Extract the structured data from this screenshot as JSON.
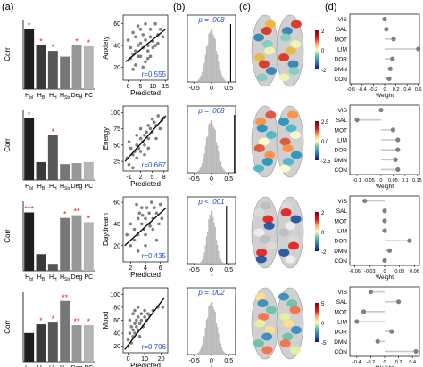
{
  "panel_labels": [
    "(a)",
    "(b)",
    "(c)",
    "(d)"
  ],
  "colors": {
    "star": "#d62728",
    "r_text": "#1f4fd8",
    "hist": "#b8b8b8",
    "weight_dot": "#808080",
    "weight_line": "#c8c8c8"
  },
  "chart_data": [
    {
      "type": "bar",
      "panel": "a",
      "row": 1,
      "ylabel": "Corr",
      "categories": [
        "H_{bl}",
        "H_{B}",
        "H_{H}",
        "H_{Str}",
        "Deg",
        "PC"
      ],
      "values": [
        0.52,
        0.38,
        0.33,
        0.28,
        0.38,
        0.37
      ],
      "significance": [
        "*",
        "*",
        "*",
        "",
        "*",
        "*"
      ],
      "colors": [
        "#1e1e1e",
        "#3a3a3a",
        "#575757",
        "#777777",
        "#979797",
        "#b5b5b5"
      ],
      "ylim": [
        0,
        0.6
      ]
    },
    {
      "type": "scatter",
      "panel": "a",
      "row": 1,
      "xlabel": "Predicted",
      "ylabel": "Anxiety",
      "xticks": [
        0,
        5,
        10,
        15
      ],
      "yticks": [
        20,
        40,
        60
      ],
      "xlim": [
        -2,
        16
      ],
      "ylim": [
        8,
        68
      ],
      "r_label": "r=0.555",
      "fit": [
        [
          -1,
          25
        ],
        [
          15,
          55
        ]
      ],
      "points": [
        [
          0,
          45
        ],
        [
          1,
          28
        ],
        [
          2,
          32
        ],
        [
          3,
          35
        ],
        [
          3,
          48
        ],
        [
          4,
          40
        ],
        [
          5,
          42
        ],
        [
          5,
          30
        ],
        [
          6,
          38
        ],
        [
          6,
          50
        ],
        [
          7,
          45
        ],
        [
          7,
          25
        ],
        [
          8,
          35
        ],
        [
          8,
          40
        ],
        [
          9,
          55
        ],
        [
          9,
          48
        ],
        [
          10,
          38
        ],
        [
          10,
          44
        ],
        [
          11,
          60
        ],
        [
          12,
          50
        ],
        [
          12,
          42
        ],
        [
          13,
          55
        ],
        [
          2,
          52
        ],
        [
          4,
          58
        ],
        [
          7,
          60
        ],
        [
          1,
          38
        ],
        [
          3,
          22
        ],
        [
          6,
          20
        ],
        [
          9,
          30
        ],
        [
          11,
          40
        ],
        [
          14,
          48
        ],
        [
          5,
          55
        ],
        [
          8,
          28
        ],
        [
          2,
          18
        ],
        [
          4,
          30
        ]
      ]
    },
    {
      "type": "histogram",
      "panel": "b",
      "row": 1,
      "p_label": "p = .008",
      "xlabel": "r",
      "xticks": [
        -0.5,
        0.0,
        0.5
      ],
      "xlim": [
        -0.7,
        0.7
      ],
      "observed_r": 0.555,
      "center": 0.0,
      "sd": 0.15
    },
    {
      "type": "colorbar",
      "panel": "c",
      "row": 1,
      "ticks": [
        "2",
        "0",
        "-2"
      ]
    },
    {
      "type": "dot",
      "panel": "d",
      "row": 1,
      "categories": [
        "VIS",
        "SAL",
        "MOT",
        "LIM",
        "DOR",
        "DMN",
        "CON"
      ],
      "values": [
        0.0,
        0.03,
        0.16,
        0.6,
        0.14,
        0.1,
        0.08
      ],
      "xticks": [
        -0.6,
        -0.4,
        -0.2,
        0.0,
        0.2,
        0.4,
        0.6
      ],
      "xlim": [
        -0.62,
        0.62
      ],
      "xlabel": "Weight"
    },
    {
      "type": "bar",
      "panel": "a",
      "row": 2,
      "ylabel": "Corr",
      "categories": [
        "H_{bl}",
        "H_{B}",
        "H_{H}",
        "H_{Str}",
        "Deg",
        "PC"
      ],
      "values": [
        0.62,
        0.18,
        0.45,
        0.16,
        0.17,
        0.18
      ],
      "significance": [
        "*",
        "",
        "*",
        "",
        "",
        ""
      ],
      "colors": [
        "#1e1e1e",
        "#3a3a3a",
        "#575757",
        "#777777",
        "#979797",
        "#b5b5b5"
      ],
      "ylim": [
        0,
        0.7
      ]
    },
    {
      "type": "scatter",
      "panel": "a",
      "row": 2,
      "xlabel": "Predicted",
      "ylabel": "Energy",
      "xticks": [
        -1,
        2,
        5,
        8
      ],
      "yticks": [
        25,
        50,
        75,
        100
      ],
      "xlim": [
        -2.5,
        9
      ],
      "ylim": [
        10,
        110
      ],
      "r_label": "r=0.667",
      "fit": [
        [
          -2,
          25
        ],
        [
          8.5,
          95
        ]
      ],
      "points": [
        [
          -1.5,
          30
        ],
        [
          -1,
          20
        ],
        [
          -0.5,
          45
        ],
        [
          0,
          35
        ],
        [
          0.5,
          40
        ],
        [
          1,
          30
        ],
        [
          1,
          50
        ],
        [
          1.5,
          45
        ],
        [
          2,
          60
        ],
        [
          2,
          40
        ],
        [
          2.5,
          55
        ],
        [
          3,
          50
        ],
        [
          3,
          65
        ],
        [
          3.5,
          70
        ],
        [
          4,
          60
        ],
        [
          4,
          80
        ],
        [
          4.5,
          75
        ],
        [
          5,
          70
        ],
        [
          5,
          90
        ],
        [
          5.5,
          85
        ],
        [
          6,
          80
        ],
        [
          6.5,
          95
        ],
        [
          7,
          75
        ],
        [
          7.5,
          88
        ],
        [
          8,
          92
        ],
        [
          0,
          15
        ],
        [
          -1,
          55
        ],
        [
          2,
          75
        ],
        [
          4,
          45
        ],
        [
          6,
          60
        ],
        [
          3,
          35
        ],
        [
          1,
          65
        ]
      ]
    },
    {
      "type": "histogram",
      "panel": "b",
      "row": 2,
      "p_label": "p = .008",
      "xlabel": "r",
      "xticks": [
        -0.5,
        0.0,
        0.5
      ],
      "xlim": [
        -0.7,
        0.7
      ],
      "observed_r": 0.667,
      "center": 0.0,
      "sd": 0.15
    },
    {
      "type": "colorbar",
      "panel": "c",
      "row": 2,
      "ticks": [
        "2.5",
        "0.0",
        "-2.5"
      ]
    },
    {
      "type": "dot",
      "panel": "d",
      "row": 2,
      "categories": [
        "VIS",
        "SAL",
        "MOT",
        "LIM",
        "DOR",
        "DMN",
        "CON"
      ],
      "values": [
        0.0,
        -0.1,
        0.05,
        0.07,
        0.07,
        0.06,
        0.07
      ],
      "xticks": [
        -0.1,
        -0.05,
        0.0,
        0.05,
        0.1,
        0.15
      ],
      "xlim": [
        -0.13,
        0.16
      ],
      "xlabel": "Weight"
    },
    {
      "type": "bar",
      "panel": "a",
      "row": 3,
      "ylabel": "Corr",
      "categories": [
        "H_{bl}",
        "H_{B}",
        "H_{H}",
        "H_{Str}",
        "Deg",
        "PC"
      ],
      "values": [
        0.42,
        0.12,
        0.05,
        0.38,
        0.4,
        0.35
      ],
      "significance": [
        "***",
        "",
        "",
        "*",
        "**",
        "*"
      ],
      "colors": [
        "#1e1e1e",
        "#3a3a3a",
        "#575757",
        "#777777",
        "#979797",
        "#b5b5b5"
      ],
      "ylim": [
        0,
        0.5
      ]
    },
    {
      "type": "scatter",
      "panel": "a",
      "row": 3,
      "xlabel": "Predicted",
      "ylabel": "Daydream",
      "xticks": [
        2,
        4,
        6
      ],
      "yticks": [
        20,
        40,
        60
      ],
      "xlim": [
        1,
        7
      ],
      "ylim": [
        5,
        65
      ],
      "r_label": "r=0.435",
      "fit": [
        [
          1.2,
          20
        ],
        [
          6.8,
          55
        ]
      ],
      "points": [
        [
          1.5,
          30
        ],
        [
          2,
          20
        ],
        [
          2,
          40
        ],
        [
          2.5,
          35
        ],
        [
          2.5,
          25
        ],
        [
          3,
          45
        ],
        [
          3,
          30
        ],
        [
          3.2,
          50
        ],
        [
          3.5,
          40
        ],
        [
          3.5,
          55
        ],
        [
          3.8,
          35
        ],
        [
          4,
          45
        ],
        [
          4,
          30
        ],
        [
          4.2,
          55
        ],
        [
          4.5,
          40
        ],
        [
          4.5,
          50
        ],
        [
          4.8,
          60
        ],
        [
          5,
          45
        ],
        [
          5,
          35
        ],
        [
          5.2,
          55
        ],
        [
          5.5,
          50
        ],
        [
          5.8,
          40
        ],
        [
          6,
          58
        ],
        [
          6.2,
          45
        ],
        [
          3,
          15
        ],
        [
          4,
          20
        ],
        [
          2.8,
          58
        ],
        [
          5.5,
          25
        ],
        [
          3.6,
          48
        ],
        [
          4.6,
          38
        ]
      ]
    },
    {
      "type": "histogram",
      "panel": "b",
      "row": 3,
      "p_label": "p < .001",
      "xlabel": "r",
      "xticks": [
        -0.5,
        0.0,
        0.5
      ],
      "xlim": [
        -0.7,
        0.7
      ],
      "observed_r": 0.435,
      "center": 0.0,
      "sd": 0.12
    },
    {
      "type": "colorbar",
      "panel": "c",
      "row": 3,
      "ticks": [
        "2",
        "0",
        "-2"
      ]
    },
    {
      "type": "dot",
      "panel": "d",
      "row": 3,
      "categories": [
        "VIS",
        "SAL",
        "MOT",
        "LIM",
        "DOR",
        "DMN",
        "CON"
      ],
      "values": [
        -0.04,
        0.0,
        0.0,
        0.0,
        0.05,
        0.01,
        0.0
      ],
      "xticks": [
        -0.06,
        -0.03,
        0.0,
        0.03,
        0.06
      ],
      "xlim": [
        -0.07,
        0.07
      ],
      "xlabel": "Weight"
    },
    {
      "type": "bar",
      "panel": "a",
      "row": 4,
      "ylabel": "Corr",
      "categories": [
        "H_{bl}",
        "H_{B}",
        "H_{H}",
        "H_{Str}",
        "Deg",
        "PC"
      ],
      "values": [
        0.33,
        0.43,
        0.45,
        0.7,
        0.42,
        0.42
      ],
      "significance": [
        "",
        "*",
        "*",
        "**",
        "**",
        "*"
      ],
      "colors": [
        "#1e1e1e",
        "#3a3a3a",
        "#575757",
        "#777777",
        "#979797",
        "#b5b5b5"
      ],
      "ylim": [
        0,
        0.8
      ]
    },
    {
      "type": "scatter",
      "panel": "a",
      "row": 4,
      "xlabel": "Predicted",
      "ylabel": "Mood",
      "xticks": [
        0,
        10,
        20
      ],
      "yticks": [
        20,
        40,
        60,
        80,
        100
      ],
      "xlim": [
        -3,
        24
      ],
      "ylim": [
        10,
        110
      ],
      "r_label": "r=0.706",
      "fit": [
        [
          -2,
          15
        ],
        [
          22,
          95
        ]
      ],
      "points": [
        [
          0,
          30
        ],
        [
          1,
          40
        ],
        [
          2,
          25
        ],
        [
          2,
          50
        ],
        [
          3,
          45
        ],
        [
          3,
          35
        ],
        [
          4,
          55
        ],
        [
          4,
          40
        ],
        [
          5,
          50
        ],
        [
          5,
          60
        ],
        [
          6,
          45
        ],
        [
          6,
          65
        ],
        [
          7,
          55
        ],
        [
          8,
          60
        ],
        [
          8,
          70
        ],
        [
          9,
          50
        ],
        [
          10,
          65
        ],
        [
          10,
          75
        ],
        [
          11,
          60
        ],
        [
          12,
          70
        ],
        [
          13,
          68
        ],
        [
          15,
          75
        ],
        [
          18,
          80
        ],
        [
          21,
          80
        ],
        [
          1,
          60
        ],
        [
          4,
          75
        ],
        [
          0,
          20
        ],
        [
          7,
          35
        ],
        [
          3,
          70
        ],
        [
          6,
          80
        ]
      ]
    },
    {
      "type": "histogram",
      "panel": "b",
      "row": 4,
      "p_label": "p = .002",
      "xlabel": "r",
      "xticks": [
        -0.5,
        0.0,
        0.5
      ],
      "xlim": [
        -0.7,
        0.7
      ],
      "observed_r": 0.706,
      "center": 0.0,
      "sd": 0.15
    },
    {
      "type": "colorbar",
      "panel": "c",
      "row": 4,
      "ticks": [
        "5",
        "0",
        "-5"
      ]
    },
    {
      "type": "dot",
      "panel": "d",
      "row": 4,
      "categories": [
        "VIS",
        "SAL",
        "MOT",
        "LIM",
        "DOR",
        "DMN",
        "CON"
      ],
      "values": [
        -0.2,
        0.2,
        -0.3,
        -0.4,
        0.1,
        -0.1,
        0.45
      ],
      "xticks": [
        -0.4,
        -0.2,
        0.0,
        0.2,
        0.4
      ],
      "xlim": [
        -0.5,
        0.5
      ],
      "xlabel": "Weight"
    }
  ]
}
